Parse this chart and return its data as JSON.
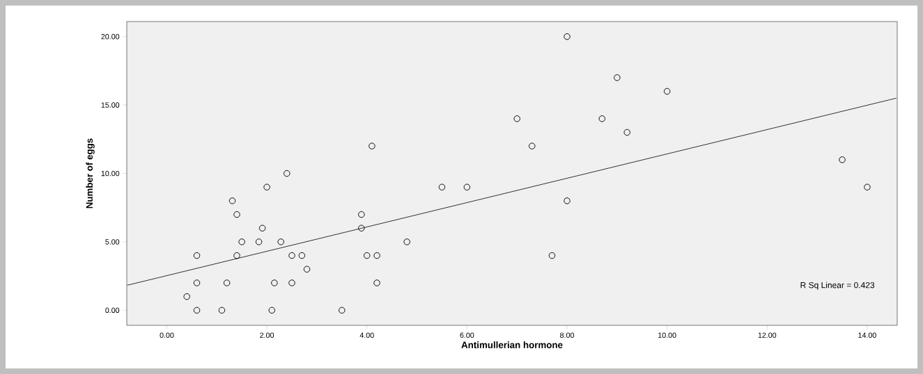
{
  "chart_data": {
    "type": "scatter",
    "xlabel": "Antimullerian hormone",
    "ylabel": "Number of eggs",
    "xlim": [
      -0.8,
      14.6
    ],
    "ylim": [
      -1.1,
      21.1
    ],
    "xticks": [
      {
        "value": 0,
        "label": "0.00"
      },
      {
        "value": 2,
        "label": "2.00"
      },
      {
        "value": 4,
        "label": "4.00"
      },
      {
        "value": 6,
        "label": "6.00"
      },
      {
        "value": 8,
        "label": "8.00"
      },
      {
        "value": 10,
        "label": "10.00"
      },
      {
        "value": 12,
        "label": "12.00"
      },
      {
        "value": 14,
        "label": "14.00"
      }
    ],
    "yticks": [
      {
        "value": 0,
        "label": "0.00"
      },
      {
        "value": 5,
        "label": "5.00"
      },
      {
        "value": 10,
        "label": "10.00"
      },
      {
        "value": 15,
        "label": "15.00"
      },
      {
        "value": 20,
        "label": "20.00"
      }
    ],
    "marker": "circle",
    "grid": false,
    "annotations": [
      "R Sq Linear = 0.423"
    ],
    "series": [
      {
        "color": "#000000",
        "x": [
          0.4,
          0.6,
          1.1,
          2.1,
          3.5,
          0.6,
          1.2,
          2.15,
          2.5,
          4.2,
          2.8,
          0.6,
          1.4,
          2.5,
          2.7,
          4.0,
          4.2,
          1.5,
          1.84,
          2.28,
          1.91,
          3.89,
          1.4,
          3.89,
          1.31,
          2.0,
          2.4,
          4.1,
          4.8,
          7.7,
          5.5,
          6.0,
          7.3,
          8.0,
          9.0,
          10.0,
          7.0,
          8.7,
          9.2,
          13.5,
          14.0,
          8.0
        ],
        "values": [
          1,
          0,
          0,
          0,
          0,
          2,
          2,
          2,
          2,
          2,
          3,
          4,
          4,
          4,
          4,
          4,
          4,
          5,
          5,
          5,
          6,
          6,
          7,
          7,
          8,
          9,
          10,
          12,
          5,
          4,
          9,
          9,
          12,
          20,
          17,
          16,
          14,
          14,
          13,
          11,
          9,
          8
        ]
      },
      {
        "type": "line",
        "color": "#000000",
        "marker": "none",
        "line_style": "solid",
        "x": [
          -0.79,
          14.58
        ],
        "values": [
          1.83,
          15.5
        ]
      }
    ]
  }
}
